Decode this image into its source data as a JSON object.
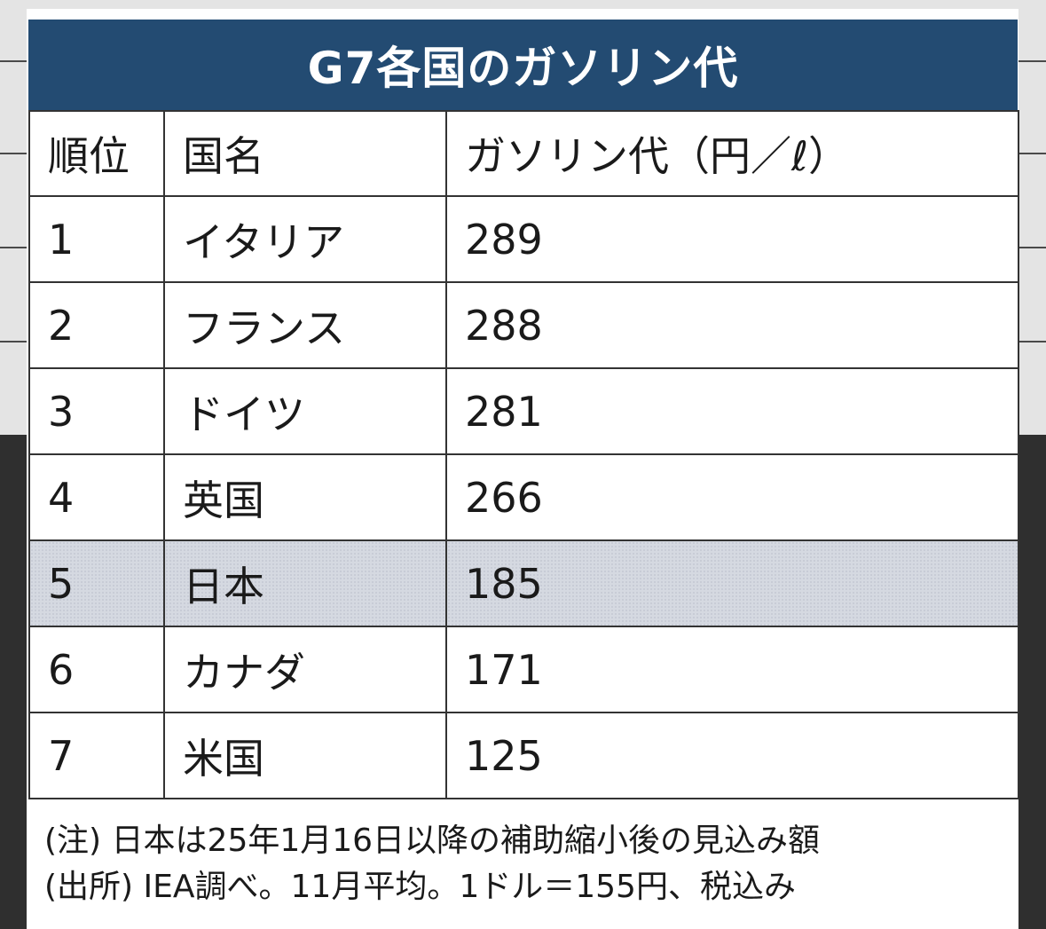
{
  "chart_data": {
    "type": "table",
    "title": "G7各国のガソリン代",
    "columns": [
      "順位",
      "国名",
      "ガソリン代（円／ℓ）"
    ],
    "rows": [
      {
        "rank": "1",
        "country": "イタリア",
        "price": "289"
      },
      {
        "rank": "2",
        "country": "フランス",
        "price": "288"
      },
      {
        "rank": "3",
        "country": "ドイツ",
        "price": "281"
      },
      {
        "rank": "4",
        "country": "英国",
        "price": "266"
      },
      {
        "rank": "5",
        "country": "日本",
        "price": "185"
      },
      {
        "rank": "6",
        "country": "カナダ",
        "price": "171"
      },
      {
        "rank": "7",
        "country": "米国",
        "price": "125"
      }
    ],
    "highlight_row": 4,
    "notes": [
      "(注) 日本は25年1月16日以降の補助縮小後の見込み額",
      "(出所) IEA調べ。11月平均。1ドル＝155円、税込み"
    ]
  },
  "colors": {
    "title_bg": "#234b72",
    "highlight_bg": "#d5d9e1"
  }
}
